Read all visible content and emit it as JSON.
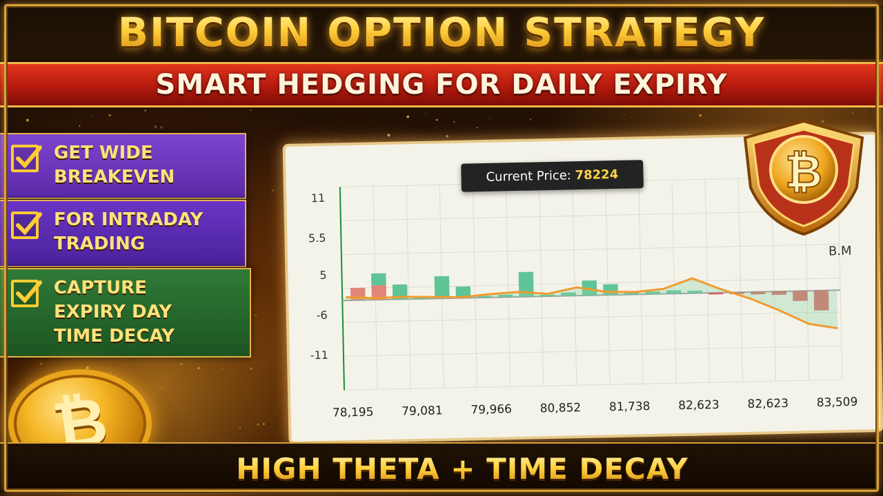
{
  "title": "BITCOIN OPTION STRATEGY",
  "subtitle": "SMART HEDGING FOR DAILY EXPIRY",
  "benefits": [
    {
      "label": "GET WIDE\nBREAKEVEN",
      "color": "#7d45cf"
    },
    {
      "label": "FOR INTRADAY\nTRADING",
      "color": "#5c2aa8"
    },
    {
      "label": "CAPTURE\nEXPIRY DAY\nTIME DECAY",
      "color": "#2f7a36"
    }
  ],
  "coin_symbol": "₿",
  "footer": "HIGH THETA + TIME DECAY",
  "chart": {
    "current_price_label": "Current Price:",
    "current_price_value": "78224",
    "legend_tag": "B.M"
  },
  "chart_data": {
    "type": "bar",
    "y_ticks": [
      "11",
      "5.5",
      "5",
      "-6",
      "-11"
    ],
    "x_tick_labels": [
      "78,195",
      "79,081",
      "79,966",
      "80,852",
      "81,738",
      "82,623",
      "82,623",
      "83,509"
    ],
    "bars": [
      {
        "y": 1.5,
        "color": "red"
      },
      {
        "y": 3.2,
        "color": "red-green"
      },
      {
        "y": 1.8,
        "color": "green"
      },
      {
        "y": 0.2,
        "color": "green"
      },
      {
        "y": 2.7,
        "color": "green"
      },
      {
        "y": 1.4,
        "color": "green"
      },
      {
        "y": 0.2,
        "color": "green"
      },
      {
        "y": 0.3,
        "color": "green"
      },
      {
        "y": 3.0,
        "color": "green"
      },
      {
        "y": 0.2,
        "color": "green"
      },
      {
        "y": 0.4,
        "color": "green"
      },
      {
        "y": 1.8,
        "color": "green"
      },
      {
        "y": 1.3,
        "color": "green"
      },
      {
        "y": 0.3,
        "color": "green"
      },
      {
        "y": 0.3,
        "color": "green"
      },
      {
        "y": 0.4,
        "color": "green"
      },
      {
        "y": 0.3,
        "color": "green"
      },
      {
        "y": -0.2,
        "color": "red"
      },
      {
        "y": -0.2,
        "color": "red"
      },
      {
        "y": -0.3,
        "color": "red"
      },
      {
        "y": -0.4,
        "color": "red"
      },
      {
        "y": -1.2,
        "color": "red"
      },
      {
        "y": -2.4,
        "color": "red"
      }
    ],
    "payoff_line": [
      0.4,
      0.2,
      0.3,
      0.2,
      0.1,
      0.4,
      0.6,
      0.3,
      1.0,
      0.4,
      0.3,
      0.6,
      1.8,
      0.4,
      -0.8,
      -2.3,
      -4.0,
      -4.6
    ],
    "colors": {
      "green": "#4fbf8d",
      "red": "#d9534f",
      "line": "#f29a2e",
      "axis": "#1d8a3a"
    }
  }
}
